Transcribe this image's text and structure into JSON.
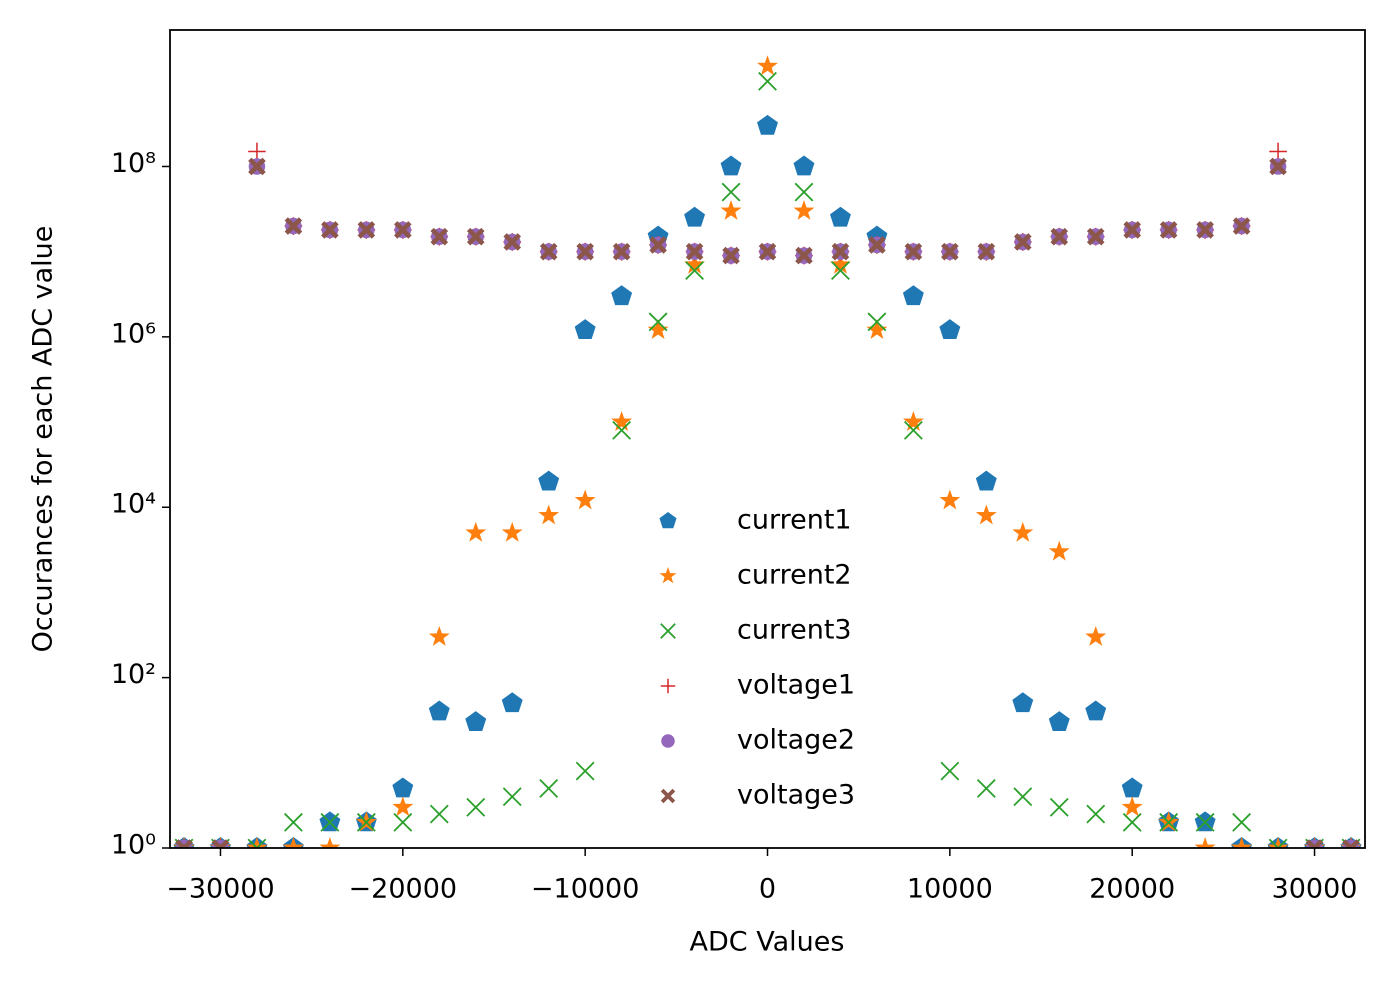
{
  "chart_data": {
    "type": "scatter",
    "x_label": "ADC Values",
    "y_label": "Occurances for each ADC value",
    "x": [
      -32000,
      -30000,
      -28000,
      -26000,
      -24000,
      -22000,
      -20000,
      -18000,
      -16000,
      -14000,
      -12000,
      -10000,
      -8000,
      -6000,
      -4000,
      -2000,
      0,
      2000,
      4000,
      6000,
      8000,
      10000,
      12000,
      14000,
      16000,
      18000,
      20000,
      22000,
      24000,
      26000,
      28000,
      30000,
      32000
    ],
    "series": [
      {
        "name": "current1",
        "color": "#1f77b4",
        "marker": "pentagon",
        "values": [
          1,
          1,
          1,
          1,
          2,
          2,
          5,
          40,
          30,
          50,
          20000,
          1200000,
          3000000,
          15000000,
          25000000,
          100000000,
          300000000,
          100000000,
          25000000,
          15000000,
          3000000,
          1200000,
          20000,
          50,
          30,
          40,
          5,
          2,
          2,
          1,
          1,
          1,
          1
        ]
      },
      {
        "name": "current2",
        "color": "#ff7f0e",
        "marker": "star",
        "values": [
          1,
          1,
          1,
          1,
          1,
          2,
          3,
          300,
          5000,
          5000,
          8000,
          12000,
          100000,
          1200000,
          7000000,
          30000000,
          1500000000,
          30000000,
          7000000,
          1200000,
          100000,
          12000,
          8000,
          5000,
          3000,
          300,
          3,
          2,
          1,
          1,
          1,
          1,
          1
        ]
      },
      {
        "name": "current3",
        "color": "#2ca02c",
        "marker": "x",
        "values": [
          1,
          1,
          1,
          2,
          2,
          2,
          2,
          2.5,
          3,
          4,
          5,
          8,
          80000,
          1500000,
          6000000,
          50000000,
          1000000000,
          50000000,
          6000000,
          1500000,
          80000,
          8,
          5,
          4,
          3,
          2.5,
          2,
          2,
          2,
          2,
          1,
          1,
          1
        ]
      },
      {
        "name": "voltage1",
        "color": "#d62728",
        "marker": "plus",
        "values": [
          1,
          1,
          150000000,
          20000000,
          18000000,
          18000000,
          18000000,
          15000000,
          15000000,
          13000000,
          10000000,
          10000000,
          10000000,
          12000000,
          10000000,
          9000000,
          10000000,
          9000000,
          10000000,
          12000000,
          10000000,
          10000000,
          10000000,
          13000000,
          15000000,
          15000000,
          18000000,
          18000000,
          18000000,
          20000000,
          150000000,
          1,
          1
        ]
      },
      {
        "name": "voltage2",
        "color": "#9467bd",
        "marker": "circle",
        "values": [
          1,
          1,
          100000000,
          20000000,
          18000000,
          18000000,
          18000000,
          15000000,
          15000000,
          13000000,
          10000000,
          10000000,
          10000000,
          12000000,
          10000000,
          9000000,
          10000000,
          9000000,
          10000000,
          12000000,
          10000000,
          10000000,
          10000000,
          13000000,
          15000000,
          15000000,
          18000000,
          18000000,
          18000000,
          20000000,
          100000000,
          1,
          1
        ]
      },
      {
        "name": "voltage3",
        "color": "#8c564b",
        "marker": "X",
        "values": [
          1,
          1,
          100000000,
          20000000,
          18000000,
          18000000,
          18000000,
          15000000,
          15000000,
          13000000,
          10000000,
          10000000,
          10000000,
          12000000,
          10000000,
          9000000,
          10000000,
          9000000,
          10000000,
          12000000,
          10000000,
          10000000,
          10000000,
          13000000,
          15000000,
          15000000,
          18000000,
          18000000,
          18000000,
          20000000,
          100000000,
          1,
          1
        ]
      }
    ],
    "xlim": [
      -32768,
      32767
    ],
    "ylim": [
      1,
      4000000000
    ],
    "y_scale": "log",
    "xticks": [
      {
        "value": -30000,
        "label": "−30000"
      },
      {
        "value": -20000,
        "label": "−20000"
      },
      {
        "value": -10000,
        "label": "−10000"
      },
      0,
      10000,
      20000,
      30000
    ],
    "yticks": [
      {
        "value": 1,
        "label": "10⁰"
      },
      {
        "value": 100,
        "label": "10²"
      },
      {
        "value": 10000,
        "label": "10⁴"
      },
      {
        "value": 1000000,
        "label": "10⁶"
      },
      {
        "value": 100000000,
        "label": "10⁸"
      }
    ],
    "grid": false,
    "legend": "center"
  }
}
